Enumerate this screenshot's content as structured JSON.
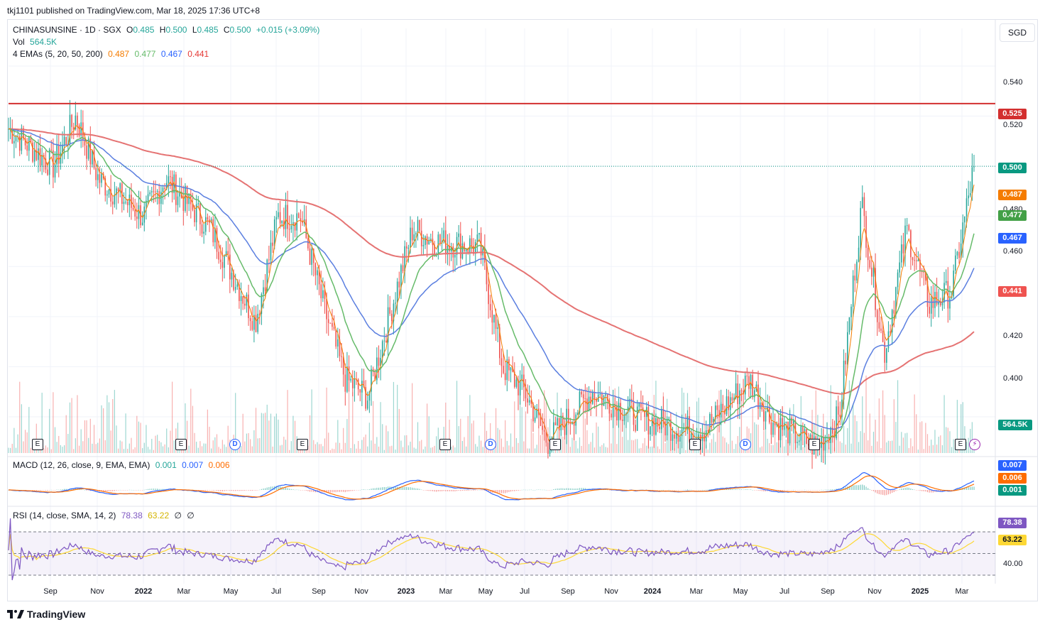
{
  "publish_info": "tkj1101 published on TradingView.com, Mar 18, 2025 17:36 UTC+8",
  "legend": {
    "symbol": "CHINASUNSINE · 1D · SGX",
    "o_label": "O",
    "o_value": "0.485",
    "h_label": "H",
    "h_value": "0.500",
    "l_label": "L",
    "l_value": "0.485",
    "c_label": "C",
    "c_value": "0.500",
    "change": "+0.015 (+3.09%)",
    "vol_label": "Vol",
    "vol_value": "564.5K",
    "ema_label": "4 EMAs (5, 20, 50, 200)",
    "ema5": "0.487",
    "ema20": "0.477",
    "ema50": "0.467",
    "ema200": "0.441"
  },
  "macd_legend": {
    "label": "MACD (12, 26, close, 9, EMA, EMA)",
    "v1": "0.001",
    "v2": "0.007",
    "v3": "0.006"
  },
  "rsi_legend": {
    "label": "RSI (14, close, SMA, 14, 2)",
    "v1": "78.38",
    "v2": "63.22",
    "v3": "∅",
    "v4": "∅"
  },
  "currency_button": "SGD",
  "price_axis": [
    "0.540",
    "0.520",
    "0.480",
    "0.460",
    "0.420",
    "0.400"
  ],
  "price_tags": {
    "resistance": "0.525",
    "last": "0.500",
    "ema5": "0.487",
    "ema20": "0.477",
    "ema50": "0.467",
    "ema200": "0.441",
    "volume": "564.5K",
    "macd_signal": "0.007",
    "macd_line": "0.006",
    "macd_hist": "0.001",
    "rsi": "78.38",
    "rsi_ma": "63.22",
    "rsi_axis": "40.00"
  },
  "x_axis": [
    {
      "label": "Sep",
      "bold": false
    },
    {
      "label": "Nov",
      "bold": false
    },
    {
      "label": "2022",
      "bold": true
    },
    {
      "label": "Mar",
      "bold": false
    },
    {
      "label": "May",
      "bold": false
    },
    {
      "label": "Jul",
      "bold": false
    },
    {
      "label": "Sep",
      "bold": false
    },
    {
      "label": "Nov",
      "bold": false
    },
    {
      "label": "2023",
      "bold": true
    },
    {
      "label": "Mar",
      "bold": false
    },
    {
      "label": "May",
      "bold": false
    },
    {
      "label": "Jul",
      "bold": false
    },
    {
      "label": "Sep",
      "bold": false
    },
    {
      "label": "Nov",
      "bold": false
    },
    {
      "label": "2024",
      "bold": true
    },
    {
      "label": "Mar",
      "bold": false
    },
    {
      "label": "May",
      "bold": false
    },
    {
      "label": "Jul",
      "bold": false
    },
    {
      "label": "Sep",
      "bold": false
    },
    {
      "label": "Nov",
      "bold": false
    },
    {
      "label": "2025",
      "bold": true
    },
    {
      "label": "Mar",
      "bold": false
    }
  ],
  "events": [
    "E",
    "E",
    "D",
    "E",
    "E",
    "D",
    "E",
    "E",
    "D",
    "E",
    "E"
  ],
  "brand": "TradingView",
  "colors": {
    "up": "#26a69a",
    "down": "#ef5350",
    "ema5": "#f57c00",
    "ema20": "#66bb6a",
    "ema50": "#5b7fe0",
    "ema200": "#e57373",
    "resistance": "#d32f2f",
    "macd": "#2962ff",
    "signal": "#ff6d00",
    "rsi": "#7e57c2",
    "rsi_ma": "#fdd835"
  },
  "chart_data": {
    "type": "candlestick",
    "title": "CHINASUNSINE · 1D · SGX",
    "ylim": [
      0.385,
      0.555
    ],
    "resistance_level": 0.525,
    "last_close": 0.5,
    "price_path": [
      [
        "2021-08",
        0.515
      ],
      [
        "2021-10",
        0.5
      ],
      [
        "2021-11",
        0.52
      ],
      [
        "2021-12",
        0.495
      ],
      [
        "2022-02",
        0.48
      ],
      [
        "2022-03",
        0.495
      ],
      [
        "2022-05",
        0.475
      ],
      [
        "2022-07",
        0.438
      ],
      [
        "2022-08",
        0.48
      ],
      [
        "2022-09",
        0.48
      ],
      [
        "2022-10",
        0.445
      ],
      [
        "2022-11",
        0.415
      ],
      [
        "2022-12",
        0.408
      ],
      [
        "2023-02",
        0.475
      ],
      [
        "2023-03",
        0.47
      ],
      [
        "2023-05",
        0.468
      ],
      [
        "2023-06",
        0.42
      ],
      [
        "2023-07",
        0.41
      ],
      [
        "2023-08",
        0.39
      ],
      [
        "2023-09",
        0.4
      ],
      [
        "2023-10",
        0.41
      ],
      [
        "2023-12",
        0.4
      ],
      [
        "2024-02",
        0.395
      ],
      [
        "2024-03",
        0.395
      ],
      [
        "2024-04",
        0.405
      ],
      [
        "2024-05",
        0.415
      ],
      [
        "2024-06",
        0.398
      ],
      [
        "2024-07",
        0.393
      ],
      [
        "2024-08",
        0.388
      ],
      [
        "2024-09",
        0.4
      ],
      [
        "2024-10",
        0.485
      ],
      [
        "2024-11",
        0.425
      ],
      [
        "2024-12",
        0.475
      ],
      [
        "2025-01",
        0.445
      ],
      [
        "2025-02",
        0.45
      ],
      [
        "2025-03",
        0.5
      ]
    ]
  }
}
